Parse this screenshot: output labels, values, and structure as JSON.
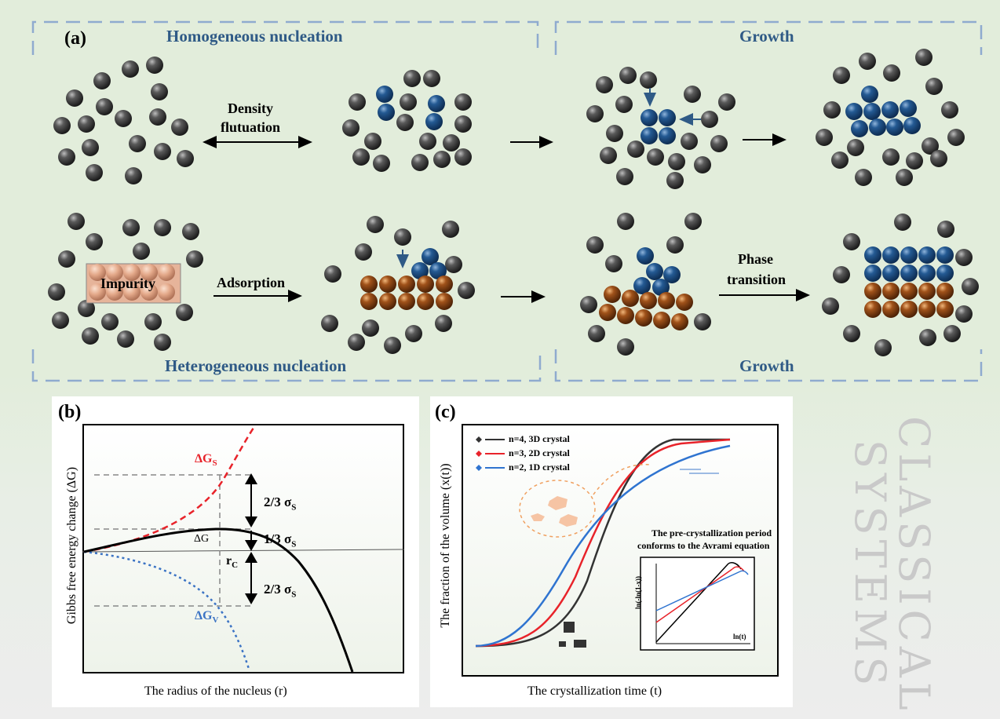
{
  "panel_a": {
    "label": "(a)",
    "homogeneous_title": "Homogeneous nucleation",
    "heterogeneous_title": "Heterogeneous nucleation",
    "growth_top": "Growth",
    "growth_bottom": "Growth",
    "density_line1": "Density",
    "density_line2": "flutuation",
    "impurity": "Impurity",
    "adsorption": "Adsorption",
    "phase_line1": "Phase",
    "phase_line2": "transition"
  },
  "panel_b": {
    "label": "(b)",
    "ylabel": "Gibbs free energy change (ΔG)",
    "xlabel": "The radius of the nucleus (r)",
    "dgs": "ΔG",
    "dgs_sub": "S",
    "dgv": "ΔG",
    "dgv_sub": "V",
    "dg": "ΔG",
    "rc": "r",
    "rc_sub": "C",
    "upper_frac": "2/3 σ",
    "upper_sub": "S",
    "mid_frac": "1/3 σ",
    "mid_sub": "S",
    "lower_frac": "2/3 σ",
    "lower_sub": "S",
    "colors": {
      "surface": "#e8232a",
      "volume": "#3b73c4",
      "total": "#000000"
    }
  },
  "panel_c": {
    "label": "(c)",
    "ylabel": "The fraction of the volume (x(t))",
    "xlabel": "The crystallization time (t)",
    "legend": [
      "n=4, 3D crystal",
      "n=3, 2D crystal",
      "n=2, 1D crystal"
    ],
    "legend_colors": [
      "#333333",
      "#e8232a",
      "#2f74d0"
    ],
    "note_line1": "The pre-crystallization period",
    "note_line2": "conforms to the Avrami equation",
    "inset_ylabel": "ln(-ln(1-x))",
    "inset_xlabel": "ln(t)"
  },
  "side_text": {
    "line1": "CLASSICAL",
    "line2": "SYSTEMS"
  }
}
